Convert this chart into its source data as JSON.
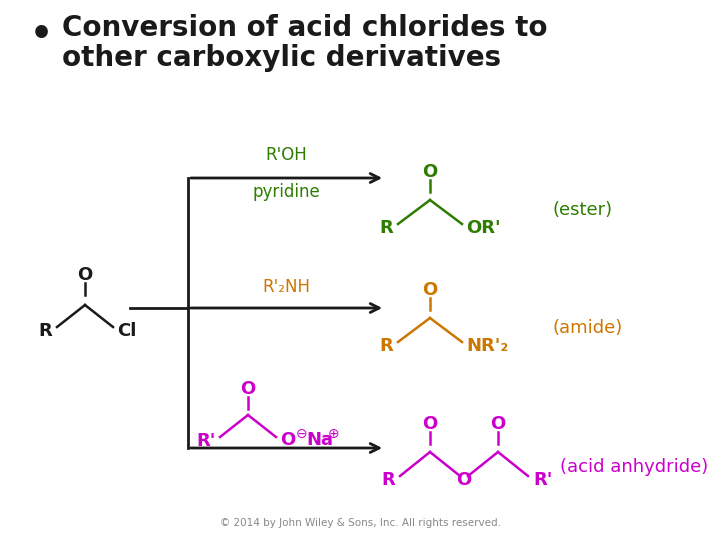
{
  "title_line1": "Conversion of acid chlorides to",
  "title_line2": "other carboxylic derivatives",
  "bullet": "•",
  "color_green": "#2d7d00",
  "color_orange": "#cc7700",
  "color_magenta": "#cc00cc",
  "color_black": "#1a1a1a",
  "color_gray": "#888888",
  "copyright": "© 2014 by John Wiley & Sons, Inc. All rights reserved.",
  "background": "#ffffff",
  "title_fontsize": 20,
  "body_fontsize": 13,
  "label_fontsize": 12
}
